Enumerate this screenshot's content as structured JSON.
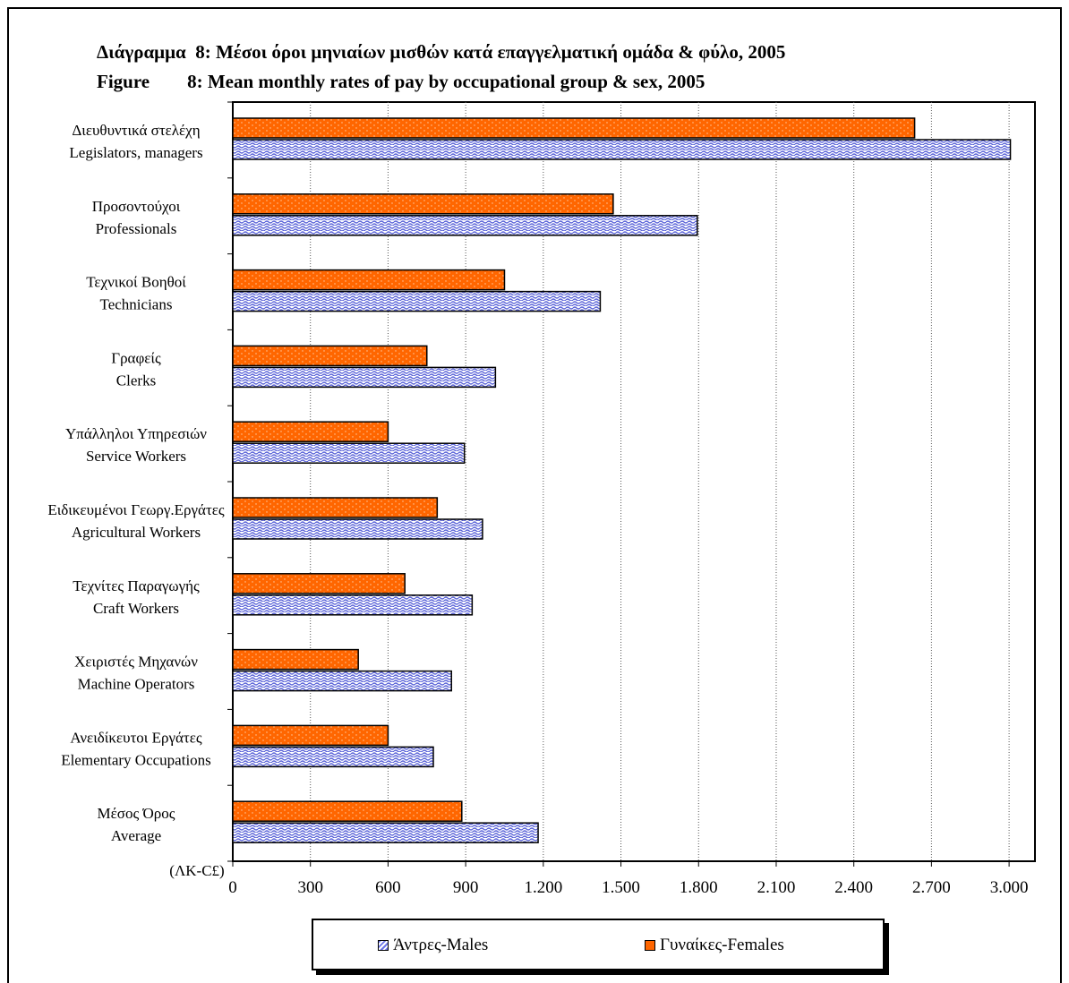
{
  "title_gr": "Διάγραμμα  8: Μέσοι όροι μηνιαίων μισθών κατά επαγγελματική ομάδα & φύλο, 2005",
  "title_en": "Figure        8: Mean monthly rates of pay by occupational group & sex, 2005",
  "colors": {
    "females": "#ff6600",
    "males_pattern": "#5a63d8"
  },
  "chart_data": {
    "type": "bar",
    "orientation": "horizontal",
    "title": "Διάγραμμα  8: Μέσοι όροι μηνιαίων μισθών κατά επαγγελματική ομάδα & φύλο, 2005 / Figure 8: Mean monthly rates of pay by occupational group & sex, 2005",
    "unit_label": "(ΛΚ-C£)",
    "categories": [
      [
        "Διευθυντικά στελέχη",
        "Legislators, managers"
      ],
      [
        "Προσοντούχοι",
        "Professionals"
      ],
      [
        "Τεχνικοί Βοηθοί",
        "Technicians"
      ],
      [
        "Γραφείς",
        "Clerks"
      ],
      [
        "Υπάλληλοι Υπηρεσιών",
        "Service Workers"
      ],
      [
        "Ειδικευμένοι Γεωργ.Εργάτες",
        "Agricultural Workers"
      ],
      [
        "Τεχνίτες Παραγωγής",
        "Craft Workers"
      ],
      [
        "Χειριστές Μηχανών",
        "Machine Operators"
      ],
      [
        "Ανειδίκευτοι Εργάτες ",
        "Elementary Occupations"
      ],
      [
        "Μέσος Όρος",
        "Average"
      ]
    ],
    "series": [
      {
        "name": "Γυναίκες-Females",
        "values": [
          2635,
          1470,
          1050,
          750,
          600,
          790,
          665,
          485,
          600,
          885
        ]
      },
      {
        "name": "Άντρες-Males",
        "values": [
          3005,
          1795,
          1420,
          1015,
          895,
          965,
          925,
          845,
          775,
          1180
        ]
      }
    ],
    "xlim": [
      0,
      3100
    ],
    "xticks": [
      0,
      300,
      600,
      900,
      1200,
      1500,
      1800,
      2100,
      2400,
      2700,
      3000
    ],
    "xtick_labels": [
      "0",
      "300",
      "600",
      "900",
      "1.200",
      "1.500",
      "1.800",
      "2.100",
      "2.400",
      "2.700",
      "3.000"
    ],
    "grid": "vertical-dotted",
    "legend_position": "bottom-center"
  },
  "legend": {
    "males": "Άντρες-Males",
    "females": "Γυναίκες-Females"
  }
}
